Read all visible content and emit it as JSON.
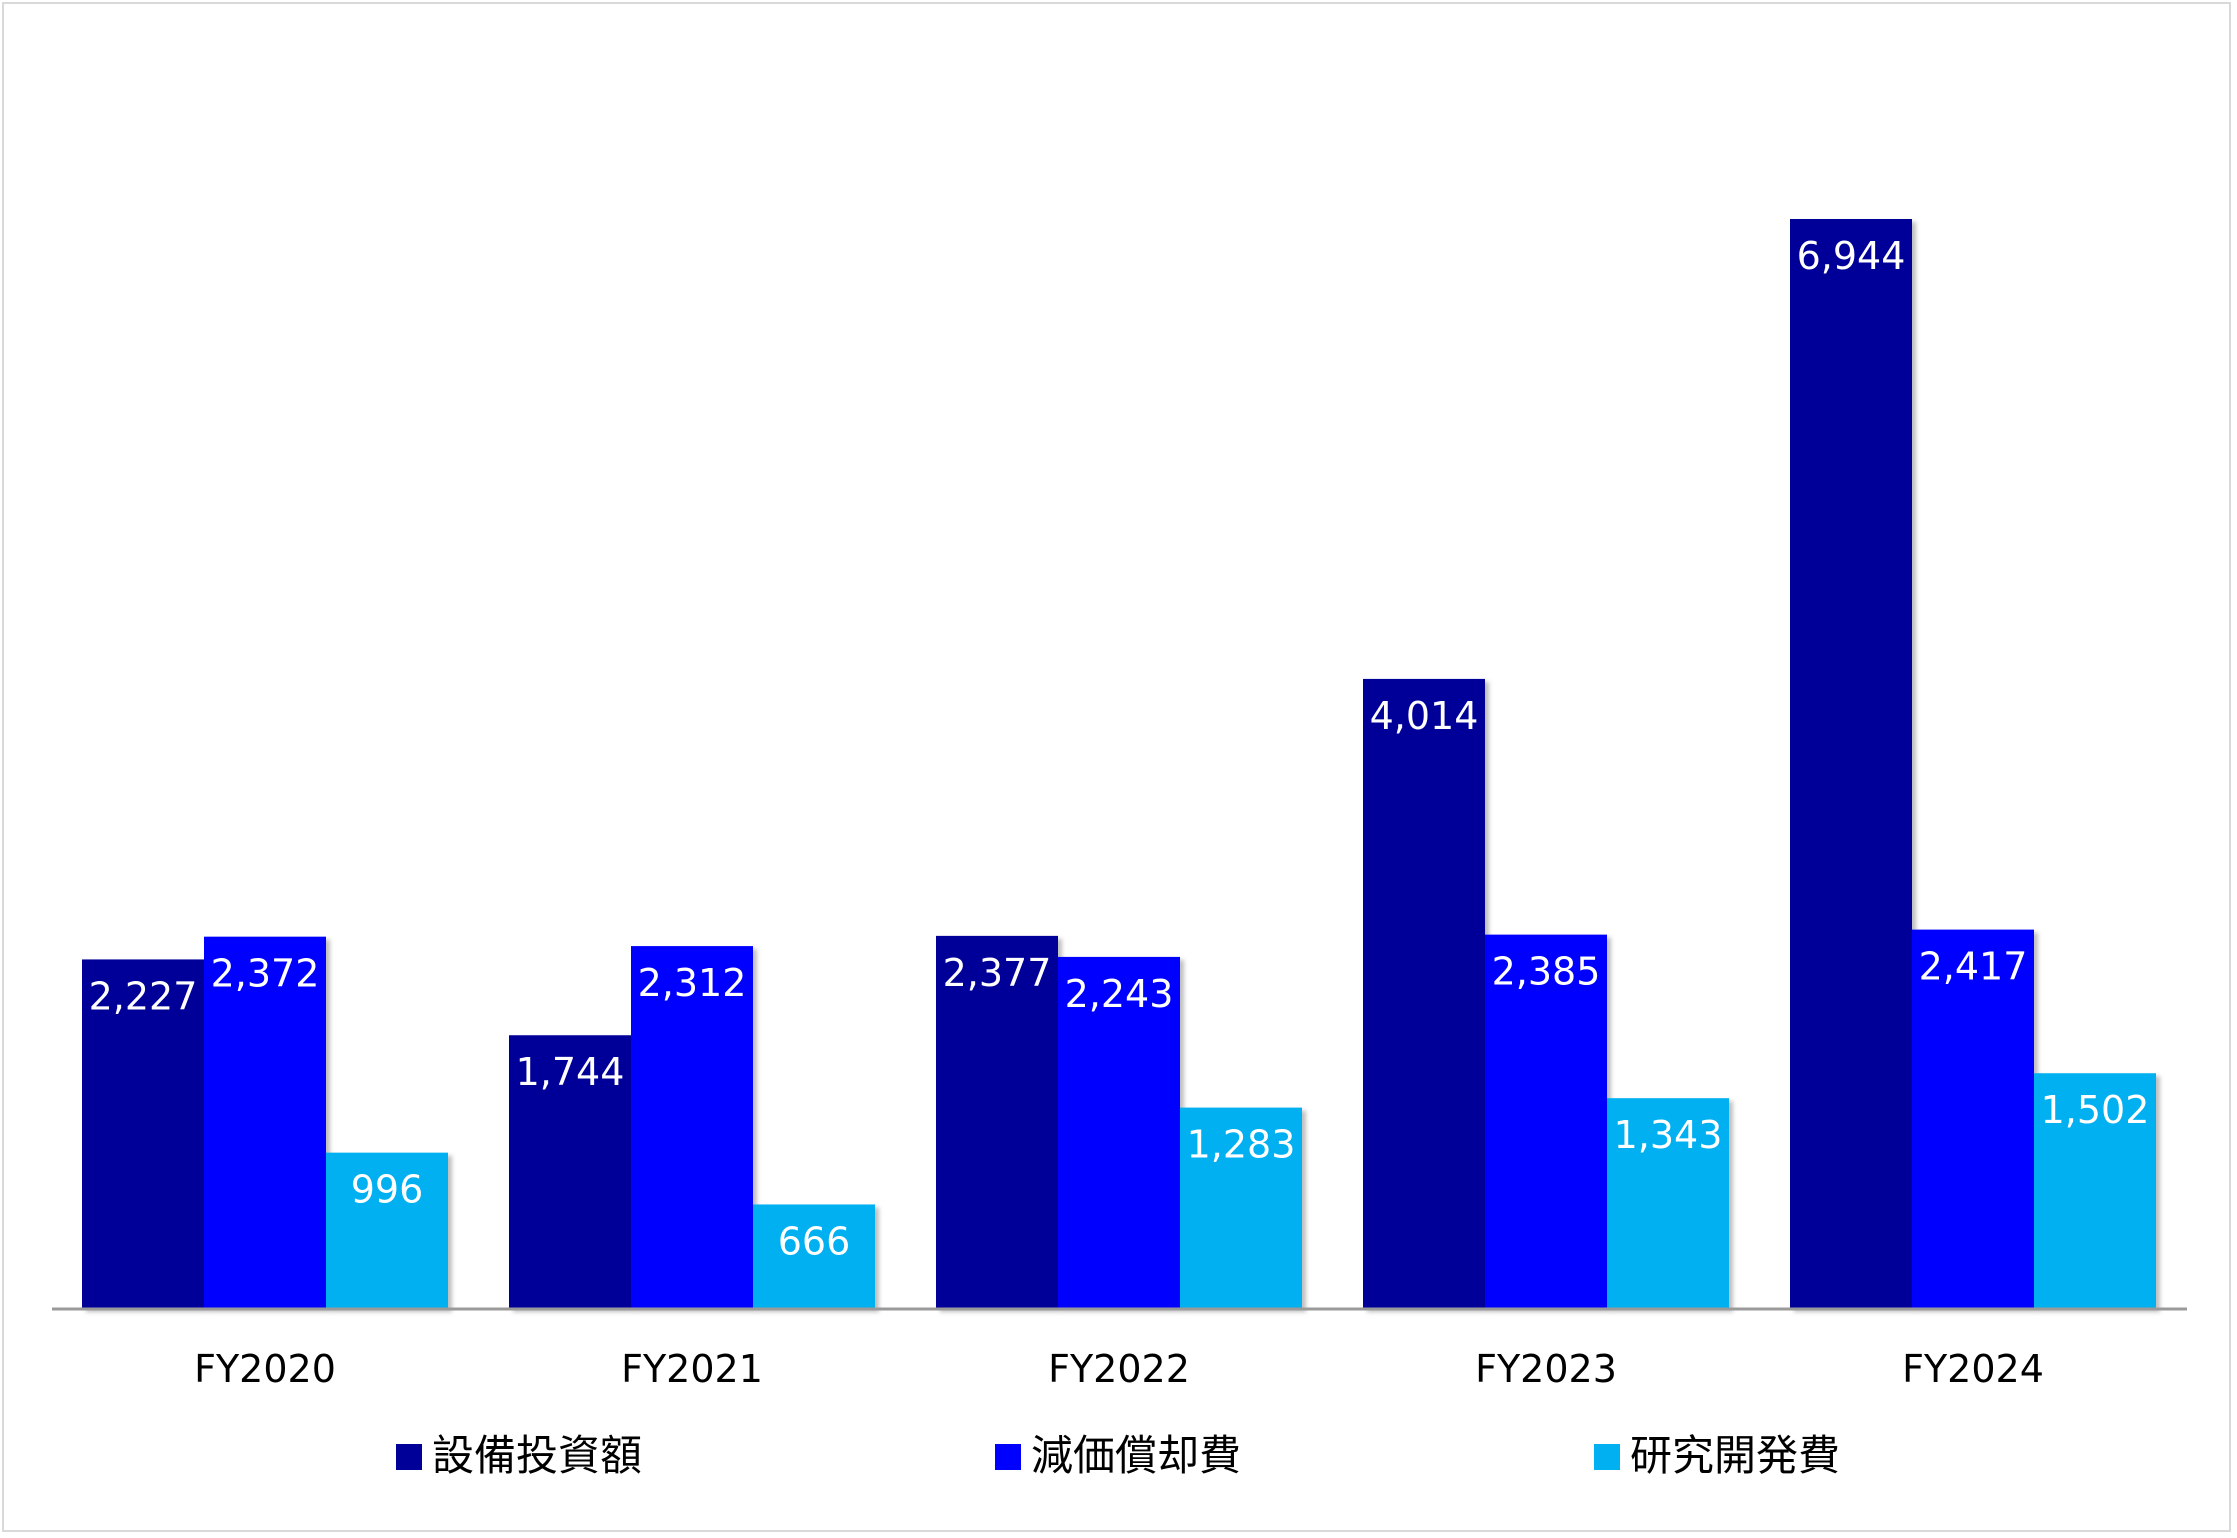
{
  "chart_data": {
    "type": "bar",
    "categories": [
      "FY2020",
      "FY2021",
      "FY2022",
      "FY2023",
      "FY2024"
    ],
    "series": [
      {
        "name": "設備投資額",
        "color": "#000099",
        "values": [
          2227,
          1744,
          2377,
          4014,
          6944
        ],
        "labels": [
          "2,227",
          "1,744",
          "2,377",
          "4,014",
          "6,944"
        ]
      },
      {
        "name": "減価償却費",
        "color": "#0000FF",
        "values": [
          2372,
          2312,
          2243,
          2385,
          2417
        ],
        "labels": [
          "2,372",
          "2,312",
          "2,243",
          "2,385",
          "2,417"
        ]
      },
      {
        "name": "研究開発費",
        "color": "#00B0F0",
        "values": [
          996,
          666,
          1283,
          1343,
          1502
        ],
        "labels": [
          "996",
          "666",
          "1,283",
          "1,343",
          "1,502"
        ]
      }
    ],
    "ylim": [
      0,
      8000
    ],
    "grid": false,
    "legend": "bottom"
  }
}
